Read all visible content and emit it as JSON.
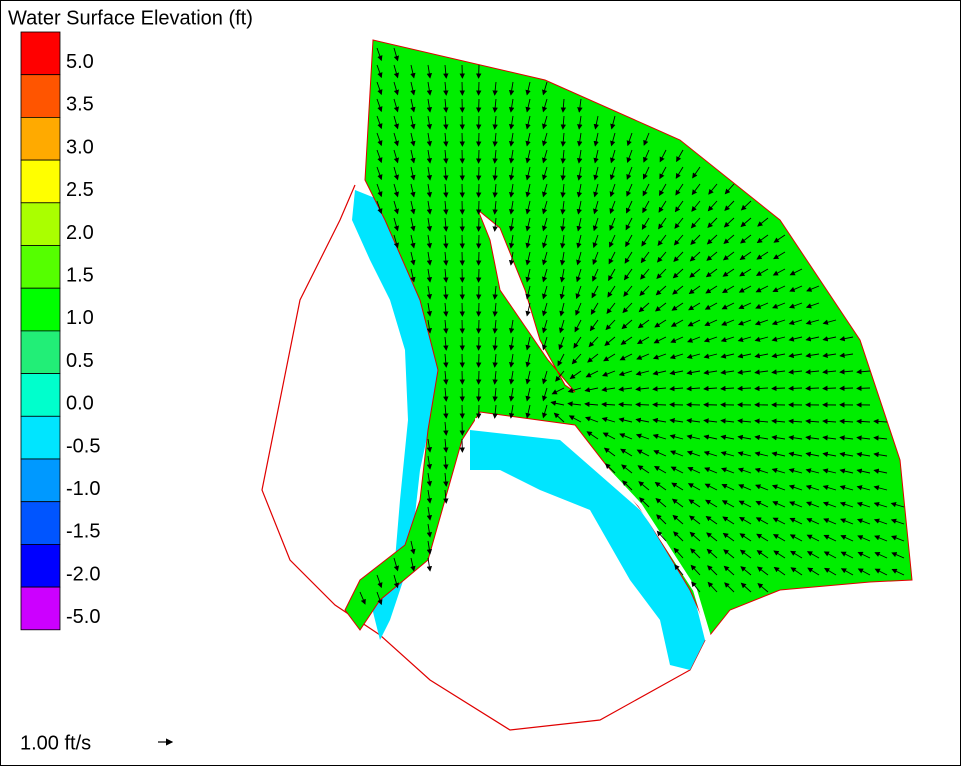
{
  "legend": {
    "title": "Water Surface Elevation (ft)",
    "items": [
      {
        "label": "5.0",
        "color": "#ff0000"
      },
      {
        "label": "3.5",
        "color": "#ff5500"
      },
      {
        "label": "3.0",
        "color": "#ffaa00"
      },
      {
        "label": "2.5",
        "color": "#ffff00"
      },
      {
        "label": "2.0",
        "color": "#aaff00"
      },
      {
        "label": "1.5",
        "color": "#55ff00"
      },
      {
        "label": "1.0",
        "color": "#00ff00"
      },
      {
        "label": "0.5",
        "color": "#22ee77"
      },
      {
        "label": "0.0",
        "color": "#00ffcc"
      },
      {
        "label": "-0.5",
        "color": "#00e5ff"
      },
      {
        "label": "-1.0",
        "color": "#0099ff"
      },
      {
        "label": "-1.5",
        "color": "#0055ff"
      },
      {
        "label": "-2.0",
        "color": "#0000ff"
      },
      {
        "label": "-5.0",
        "color": "#cc00ff"
      }
    ]
  },
  "scale": {
    "label": "1.00 ft/s"
  }
}
